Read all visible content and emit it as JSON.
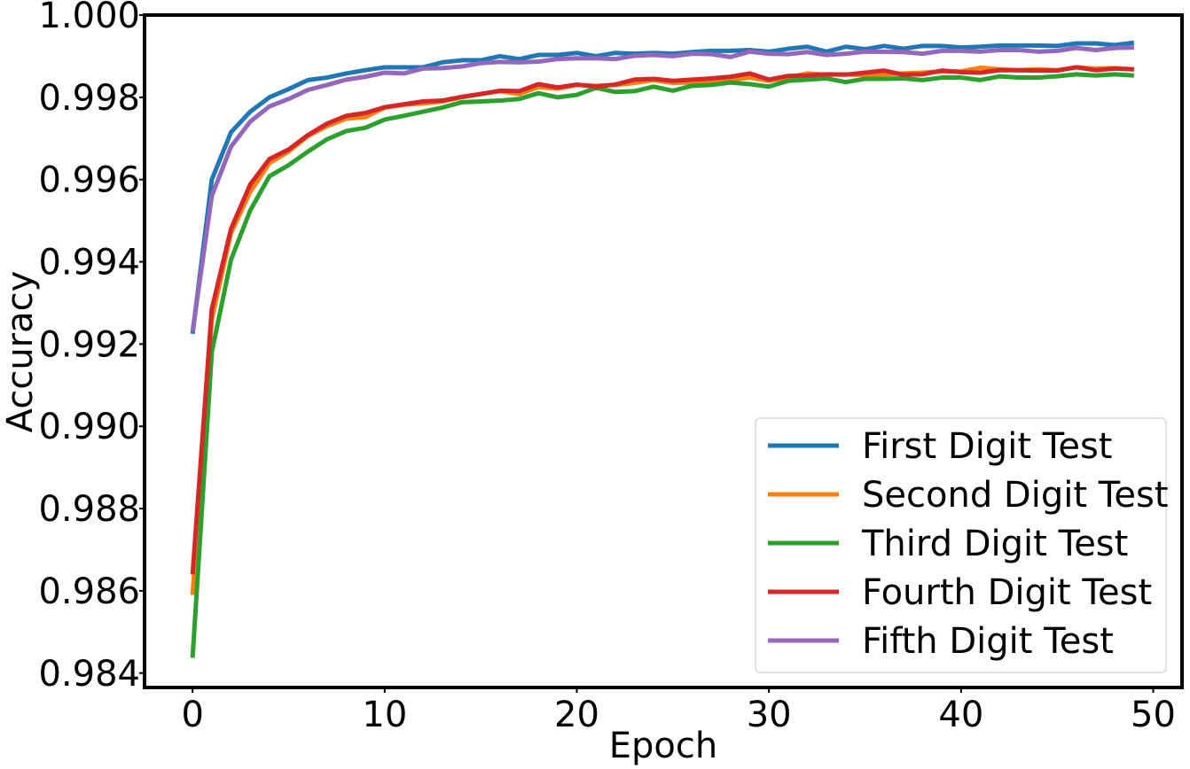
{
  "chart_data": {
    "type": "line",
    "xlabel": "Epoch",
    "ylabel": "Accuracy",
    "xlim": [
      -2.5,
      51.5
    ],
    "ylim": [
      0.98365,
      1.0
    ],
    "x_ticks": [
      0,
      10,
      20,
      30,
      40,
      50
    ],
    "y_ticks": [
      0.984,
      0.986,
      0.988,
      0.99,
      0.992,
      0.994,
      0.996,
      0.998,
      1.0
    ],
    "x_tick_labels": [
      "0",
      "10",
      "20",
      "30",
      "40",
      "50"
    ],
    "y_tick_labels": [
      "0.984",
      "0.986",
      "0.988",
      "0.990",
      "0.992",
      "0.994",
      "0.996",
      "0.998",
      "1.000"
    ],
    "grid": false,
    "legend_position": "lower-right",
    "series": [
      {
        "name": "First Digit Test",
        "color": "#1f77b4",
        "values": [
          0.99225,
          0.996,
          0.99715,
          0.99765,
          0.998,
          0.9982,
          0.99842,
          0.99848,
          0.99858,
          0.99866,
          0.99873,
          0.99873,
          0.99873,
          0.99885,
          0.9989,
          0.9989,
          0.999,
          0.99893,
          0.99903,
          0.99903,
          0.99908,
          0.999,
          0.99908,
          0.99906,
          0.99908,
          0.99906,
          0.9991,
          0.99913,
          0.99913,
          0.99915,
          0.99911,
          0.99918,
          0.99923,
          0.99911,
          0.99923,
          0.99917,
          0.99925,
          0.99918,
          0.99925,
          0.99925,
          0.99921,
          0.99923,
          0.99926,
          0.99926,
          0.99926,
          0.99925,
          0.99931,
          0.99931,
          0.99927,
          0.99933
        ]
      },
      {
        "name": "Second Digit Test",
        "color": "#ff7f0e",
        "values": [
          0.9859,
          0.9926,
          0.9947,
          0.9957,
          0.9964,
          0.99668,
          0.99706,
          0.9973,
          0.99748,
          0.99752,
          0.99775,
          0.99782,
          0.99785,
          0.9979,
          0.998,
          0.99808,
          0.99815,
          0.99808,
          0.99825,
          0.99821,
          0.9983,
          0.99828,
          0.9983,
          0.99835,
          0.99842,
          0.99835,
          0.99836,
          0.99838,
          0.99843,
          0.99848,
          0.9984,
          0.99848,
          0.99858,
          0.99855,
          0.99856,
          0.99854,
          0.99856,
          0.99858,
          0.9986,
          0.99863,
          0.99863,
          0.99872,
          0.99868,
          0.99866,
          0.99868,
          0.99866,
          0.99873,
          0.9987,
          0.99871,
          0.99868
        ]
      },
      {
        "name": "Third Digit Test",
        "color": "#2ca02c",
        "values": [
          0.98437,
          0.9918,
          0.99405,
          0.99525,
          0.99608,
          0.99635,
          0.99668,
          0.99698,
          0.99718,
          0.99726,
          0.99746,
          0.99755,
          0.99765,
          0.99775,
          0.99788,
          0.9979,
          0.99792,
          0.99796,
          0.9981,
          0.998,
          0.99806,
          0.99823,
          0.99813,
          0.99815,
          0.99826,
          0.99816,
          0.99828,
          0.9983,
          0.99836,
          0.99832,
          0.99826,
          0.9984,
          0.99843,
          0.99846,
          0.99837,
          0.99845,
          0.99845,
          0.99846,
          0.99842,
          0.99848,
          0.99848,
          0.99842,
          0.99851,
          0.99848,
          0.99848,
          0.99851,
          0.99856,
          0.99853,
          0.99856,
          0.99853
        ]
      },
      {
        "name": "Fourth Digit Test",
        "color": "#d62728",
        "values": [
          0.9864,
          0.99285,
          0.9948,
          0.99588,
          0.9965,
          0.99673,
          0.99708,
          0.99736,
          0.99755,
          0.99762,
          0.99776,
          0.99783,
          0.9979,
          0.99792,
          0.99801,
          0.99808,
          0.99816,
          0.99815,
          0.99832,
          0.99824,
          0.99831,
          0.99826,
          0.99831,
          0.99843,
          0.99845,
          0.9984,
          0.99843,
          0.99846,
          0.9985,
          0.99858,
          0.99843,
          0.99852,
          0.99853,
          0.99856,
          0.99855,
          0.9986,
          0.99865,
          0.99855,
          0.99856,
          0.99865,
          0.99861,
          0.9986,
          0.99866,
          0.99866,
          0.99865,
          0.99865,
          0.99873,
          0.99866,
          0.9987,
          0.99868
        ]
      },
      {
        "name": "Fifth Digit Test",
        "color": "#9467bd",
        "values": [
          0.9923,
          0.9956,
          0.9968,
          0.99741,
          0.99778,
          0.99796,
          0.99818,
          0.9983,
          0.99843,
          0.9985,
          0.9986,
          0.99858,
          0.9987,
          0.99871,
          0.99875,
          0.99883,
          0.99886,
          0.99885,
          0.99887,
          0.99893,
          0.99895,
          0.99895,
          0.99893,
          0.99901,
          0.99903,
          0.999,
          0.99906,
          0.99905,
          0.99898,
          0.99911,
          0.99906,
          0.99905,
          0.9991,
          0.99903,
          0.99906,
          0.99911,
          0.99911,
          0.9991,
          0.99906,
          0.99913,
          0.99913,
          0.99911,
          0.99915,
          0.99915,
          0.99911,
          0.99913,
          0.9992,
          0.99915,
          0.9992,
          0.99921
        ]
      }
    ]
  }
}
